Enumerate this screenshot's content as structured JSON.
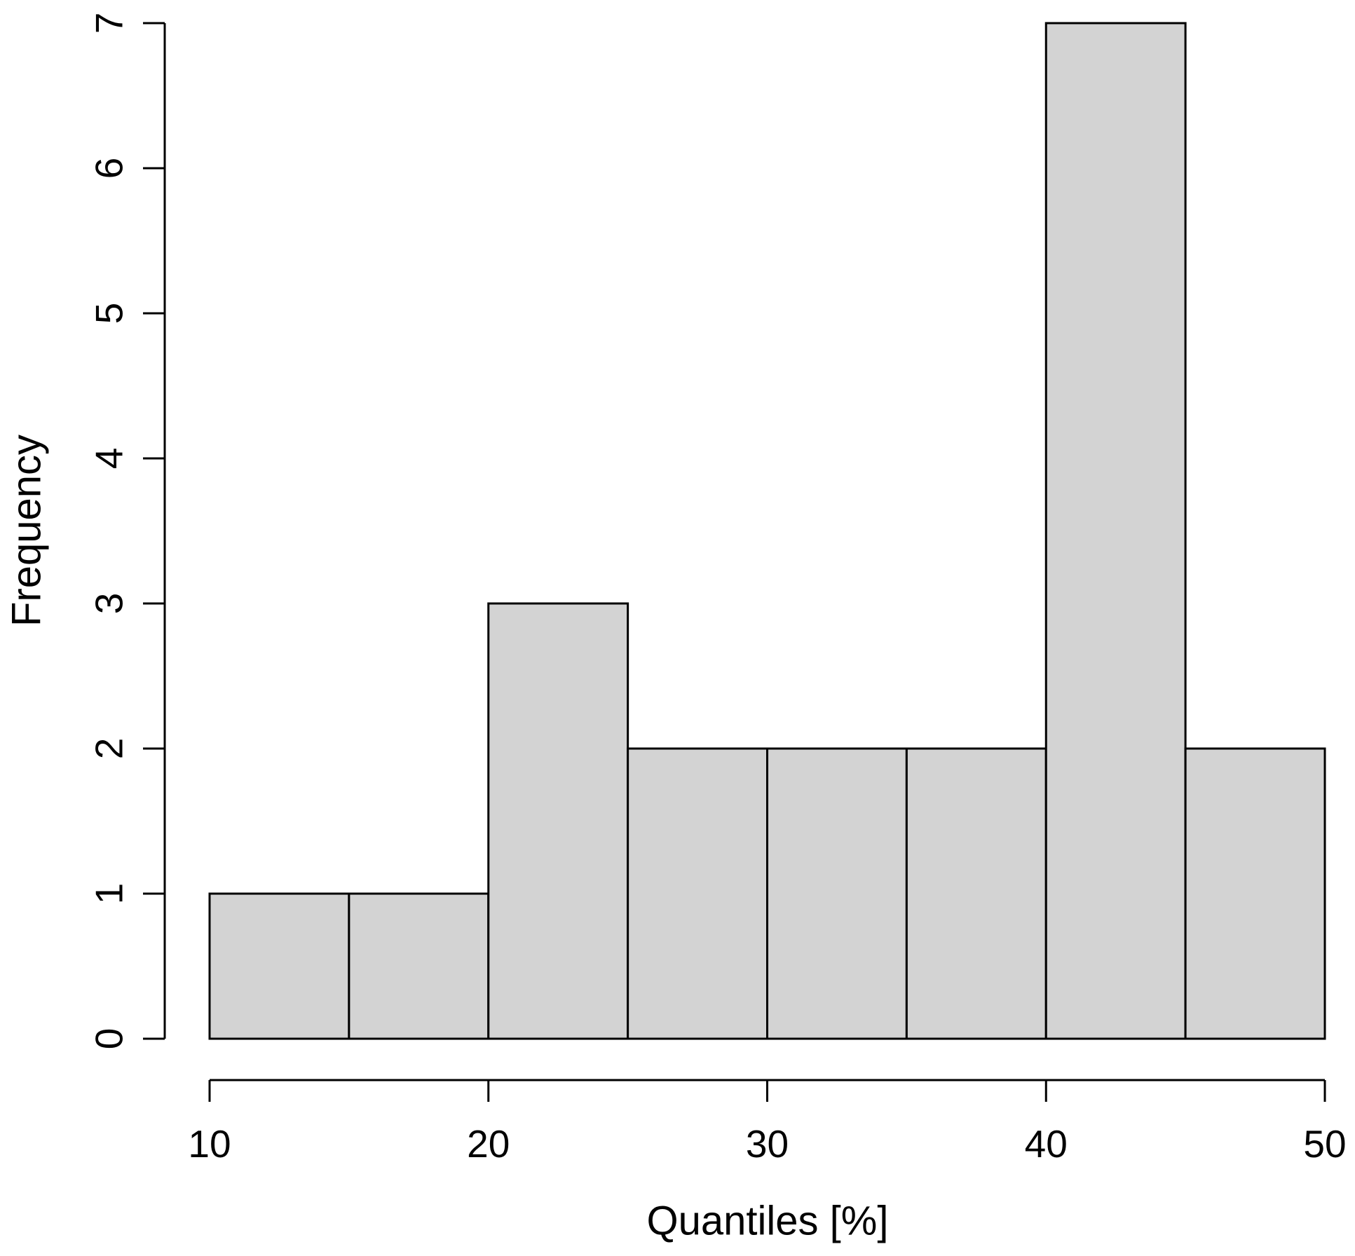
{
  "chart_data": {
    "type": "bar",
    "subtype": "histogram",
    "title": "",
    "xlabel": "Quantiles [%]",
    "ylabel": "Frequency",
    "bins": [
      {
        "range": [
          10,
          15
        ],
        "count": 1
      },
      {
        "range": [
          15,
          20
        ],
        "count": 1
      },
      {
        "range": [
          20,
          25
        ],
        "count": 3
      },
      {
        "range": [
          25,
          30
        ],
        "count": 2
      },
      {
        "range": [
          30,
          35
        ],
        "count": 2
      },
      {
        "range": [
          35,
          40
        ],
        "count": 2
      },
      {
        "range": [
          40,
          45
        ],
        "count": 7
      },
      {
        "range": [
          45,
          50
        ],
        "count": 2
      }
    ],
    "xlim": [
      10,
      50
    ],
    "ylim": [
      0,
      7
    ],
    "xticks": [
      10,
      20,
      30,
      40,
      50
    ],
    "yticks": [
      0,
      1,
      2,
      3,
      4,
      5,
      6,
      7
    ],
    "grid": false,
    "legend": null,
    "colors": {
      "bar_fill": "#d3d3d3",
      "bar_border": "#000000",
      "axis": "#000000",
      "text": "#000000",
      "background": "#ffffff"
    }
  }
}
